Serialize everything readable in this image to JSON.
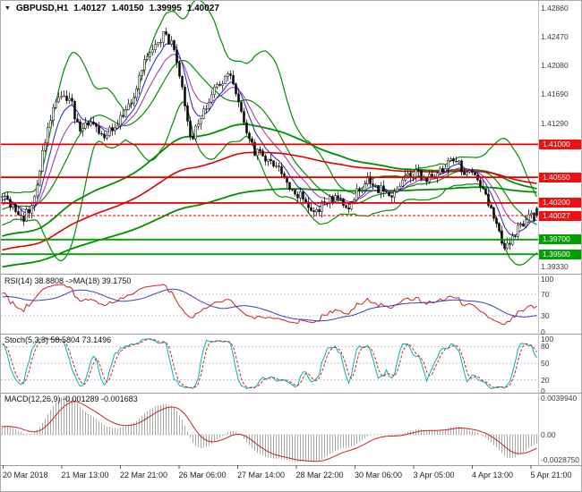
{
  "header": {
    "symbol": "GBPUSD,H1",
    "open": "1.40127",
    "high": "1.40150",
    "low": "1.39995",
    "close": "1.40027"
  },
  "colors": {
    "bull": "#ffffff",
    "bear": "#000000",
    "outline": "#000000",
    "bollinger": "#008f00",
    "ma_green": "#008f00",
    "ma_red": "#e00000",
    "ma_blue": "#2222cc",
    "ma_purple": "#a030b0",
    "bid_line": "#e00000",
    "rsi_main": "#cc2222",
    "rsi_ma": "#3344bb",
    "stoch_main": "#00b2b2",
    "stoch_signal": "#cc2222",
    "macd_hist": "#a8a8a8",
    "macd_signal": "#cc2222",
    "badge_red": "#ef1010",
    "badge_green": "#00a000"
  },
  "main_chart": {
    "price_axis_labels": [
      {
        "text": "1.42860",
        "price": 1.4286
      },
      {
        "text": "1.42470",
        "price": 1.4247
      },
      {
        "text": "1.42080",
        "price": 1.4208
      },
      {
        "text": "1.41690",
        "price": 1.4169
      },
      {
        "text": "1.41290",
        "price": 1.4129
      },
      {
        "text": "1.39330",
        "price": 1.3933
      }
    ],
    "hlines": [
      {
        "text": "1.41000",
        "price": 1.41,
        "color": "#e00000"
      },
      {
        "text": "1.40550",
        "price": 1.4055,
        "color": "#e00000"
      },
      {
        "text": "1.40200",
        "price": 1.402,
        "color": "#e00000"
      },
      {
        "text": "1.39700",
        "price": 1.397,
        "color": "#00a000"
      },
      {
        "text": "1.39500",
        "price": 1.395,
        "color": "#00a000"
      }
    ],
    "badges": [
      {
        "text": "1.41000",
        "price": 1.41,
        "bg": "#ef1010",
        "interactable": "true"
      },
      {
        "text": "1.40550",
        "price": 1.4055,
        "bg": "#ef1010",
        "interactable": "true"
      },
      {
        "text": "1.40200",
        "price": 1.402,
        "bg": "#ef1010",
        "interactable": "true"
      },
      {
        "text": "1.40027",
        "price": 1.40027,
        "bg": "#ef1010",
        "interactable": "false"
      },
      {
        "text": "1.39700",
        "price": 1.397,
        "bg": "#00a000",
        "interactable": "true"
      },
      {
        "text": "1.39500",
        "price": 1.395,
        "bg": "#00a000",
        "interactable": "true"
      }
    ],
    "bid": {
      "price": 1.40027,
      "text": "1.40027"
    }
  },
  "panels": {
    "rsi": {
      "label": "RSI(14) 38.8808 ->MA(18) 39.1750",
      "axis": [
        {
          "t": "100",
          "v": 100
        },
        {
          "t": "70",
          "v": 70
        },
        {
          "t": "30",
          "v": 30
        },
        {
          "t": "0",
          "v": 0
        }
      ],
      "levels": [
        70,
        30
      ]
    },
    "stoch": {
      "label": "Stoch(5,3,3) 58.5804 73.1496",
      "axis": [
        {
          "t": "100",
          "v": 100
        },
        {
          "t": "80",
          "v": 80
        },
        {
          "t": "50",
          "v": 50
        },
        {
          "t": "20",
          "v": 20
        },
        {
          "t": "0",
          "v": 0
        }
      ],
      "levels": [
        80,
        50,
        20
      ]
    },
    "macd": {
      "label": "MACD(12,26,9) -0.001289 -0.001683",
      "axis": [
        {
          "t": "0.0039940",
          "v": 0.003994
        },
        {
          "t": "0.00",
          "v": 0
        },
        {
          "t": "-0.0028750",
          "v": -0.002875
        }
      ]
    }
  },
  "x_axis": {
    "labels": [
      "20 Mar 2018",
      "21 Mar 13:00",
      "22 Mar 21:00",
      "26 Mar 06:00",
      "27 Mar 14:00",
      "28 Mar 22:00",
      "30 Mar 06:00",
      "3 Apr 05:00",
      "4 Apr 13:00",
      "5 Apr 21:00"
    ]
  },
  "chart_data": {
    "type": "candlestick",
    "symbol": "GBPUSD",
    "timeframe": "H1",
    "title": "GBPUSD,H1",
    "ohlc_current": {
      "open": 1.40127,
      "high": 1.4015,
      "low": 1.39995,
      "close": 1.40027
    },
    "ylim": [
      1.392,
      1.4296
    ],
    "y_axis_ticks": [
      1.4286,
      1.4247,
      1.4208,
      1.4169,
      1.4129,
      1.3933
    ],
    "x_tick_labels": [
      "20 Mar 2018",
      "21 Mar 13:00",
      "22 Mar 21:00",
      "26 Mar 06:00",
      "27 Mar 14:00",
      "28 Mar 22:00",
      "30 Mar 06:00",
      "3 Apr 05:00",
      "4 Apr 13:00",
      "5 Apr 21:00"
    ],
    "levels": {
      "resistance": [
        1.41,
        1.4055,
        1.402
      ],
      "support": [
        1.397,
        1.395
      ]
    },
    "candle_count": 200,
    "noise_seed": 11,
    "noise_amp": 0.0008,
    "price_keyframes": [
      [
        -0.8,
        1.388
      ],
      [
        -0.55,
        1.392
      ],
      [
        -0.35,
        1.3952
      ],
      [
        -0.2,
        1.3978
      ],
      [
        -0.1,
        1.3998
      ],
      [
        -0.04,
        1.4012
      ],
      [
        0.0,
        1.4028
      ],
      [
        0.02,
        1.4018
      ],
      [
        0.035,
        1.3996
      ],
      [
        0.055,
        1.4015
      ],
      [
        0.075,
        1.4085
      ],
      [
        0.095,
        1.415
      ],
      [
        0.115,
        1.4172
      ],
      [
        0.13,
        1.4152
      ],
      [
        0.145,
        1.4118
      ],
      [
        0.165,
        1.4128
      ],
      [
        0.185,
        1.411
      ],
      [
        0.205,
        1.4122
      ],
      [
        0.225,
        1.414
      ],
      [
        0.245,
        1.417
      ],
      [
        0.265,
        1.421
      ],
      [
        0.285,
        1.4238
      ],
      [
        0.3,
        1.4249
      ],
      [
        0.315,
        1.4238
      ],
      [
        0.33,
        1.4195
      ],
      [
        0.345,
        1.4128
      ],
      [
        0.355,
        1.4106
      ],
      [
        0.37,
        1.4142
      ],
      [
        0.39,
        1.4168
      ],
      [
        0.41,
        1.4186
      ],
      [
        0.425,
        1.4193
      ],
      [
        0.44,
        1.4158
      ],
      [
        0.455,
        1.4118
      ],
      [
        0.47,
        1.409
      ],
      [
        0.49,
        1.4082
      ],
      [
        0.51,
        1.407
      ],
      [
        0.53,
        1.4048
      ],
      [
        0.55,
        1.4033
      ],
      [
        0.57,
        1.4016
      ],
      [
        0.585,
        1.4006
      ],
      [
        0.6,
        1.4022
      ],
      [
        0.62,
        1.403
      ],
      [
        0.64,
        1.4012
      ],
      [
        0.66,
        1.4036
      ],
      [
        0.68,
        1.4052
      ],
      [
        0.7,
        1.404
      ],
      [
        0.72,
        1.4031
      ],
      [
        0.735,
        1.4038
      ],
      [
        0.755,
        1.4056
      ],
      [
        0.77,
        1.4063
      ],
      [
        0.785,
        1.4048
      ],
      [
        0.8,
        1.4058
      ],
      [
        0.82,
        1.4067
      ],
      [
        0.84,
        1.4076
      ],
      [
        0.855,
        1.4068
      ],
      [
        0.875,
        1.4056
      ],
      [
        0.895,
        1.4044
      ],
      [
        0.915,
        1.3996
      ],
      [
        0.93,
        1.3966
      ],
      [
        0.945,
        1.396
      ],
      [
        0.962,
        1.3988
      ],
      [
        0.98,
        1.4001
      ],
      [
        1.0,
        1.40027
      ]
    ],
    "indicators": {
      "bollinger": {
        "period": 20,
        "dev": 2
      },
      "ma_fast": {
        "period": 7
      },
      "ma_med": {
        "period": 14
      },
      "ma_red": {
        "period": 160
      },
      "ma_green_med": {
        "period": 100
      },
      "ma_green_slow": {
        "period": 280
      },
      "rsi": {
        "period": 14,
        "ma_period": 18,
        "current": 38.8808,
        "ma_current": 39.175
      },
      "stoch": {
        "k_period": 5,
        "d_period": 3,
        "slowing": 3,
        "current": 58.5804,
        "signal_current": 73.1496
      },
      "macd": {
        "fast": 12,
        "slow": 26,
        "signal_period": 9,
        "current": -0.001289,
        "signal_current": -0.001683
      }
    }
  }
}
